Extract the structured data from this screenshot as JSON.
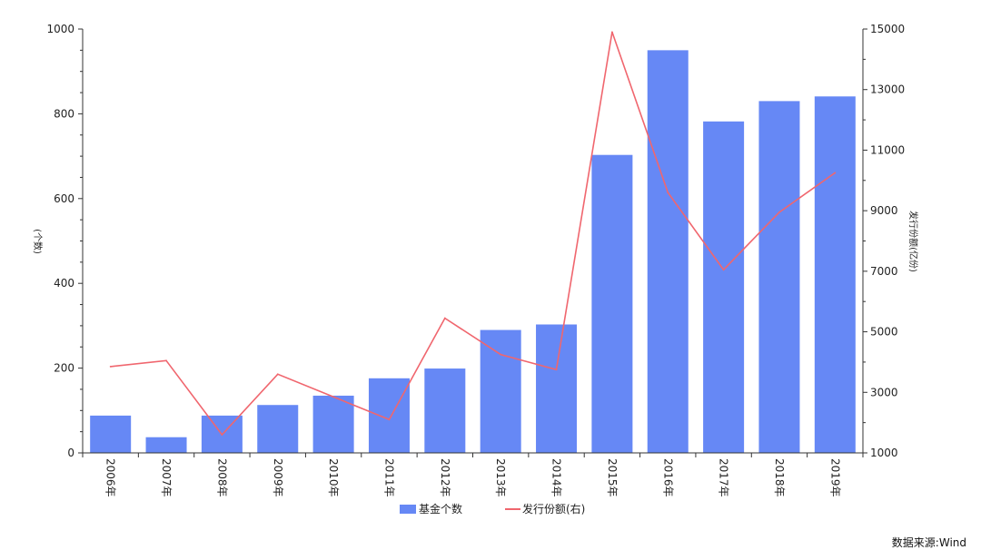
{
  "chart_data": {
    "type": "bar",
    "categories": [
      "2006年",
      "2007年",
      "2008年",
      "2009年",
      "2010年",
      "2011年",
      "2012年",
      "2013年",
      "2014年",
      "2015年",
      "2016年",
      "2017年",
      "2018年",
      "2019年"
    ],
    "series": [
      {
        "name": "基金个数",
        "type": "bar",
        "axis": "left",
        "color": "#6688f5",
        "values": [
          88,
          37,
          88,
          113,
          135,
          176,
          199,
          290,
          303,
          703,
          950,
          782,
          830,
          841
        ]
      },
      {
        "name": "发行份额(右)",
        "type": "line",
        "axis": "right",
        "color": "#f0666e",
        "values": [
          3850,
          4050,
          1600,
          3600,
          2850,
          2100,
          5450,
          4250,
          3750,
          14900,
          9600,
          7050,
          8950,
          10250
        ]
      }
    ],
    "ylabel": "(个数)",
    "ylabel_right": "发行份额(亿份)",
    "ylim": [
      0,
      1000
    ],
    "yticks": [
      0,
      200,
      400,
      600,
      800,
      1000
    ],
    "ylim_right": [
      1000,
      15000
    ],
    "yticks_right": [
      1000,
      3000,
      5000,
      7000,
      9000,
      11000,
      13000,
      15000
    ],
    "legend_position": "bottom-center",
    "grid": false
  },
  "source": "数据来源:Wind"
}
